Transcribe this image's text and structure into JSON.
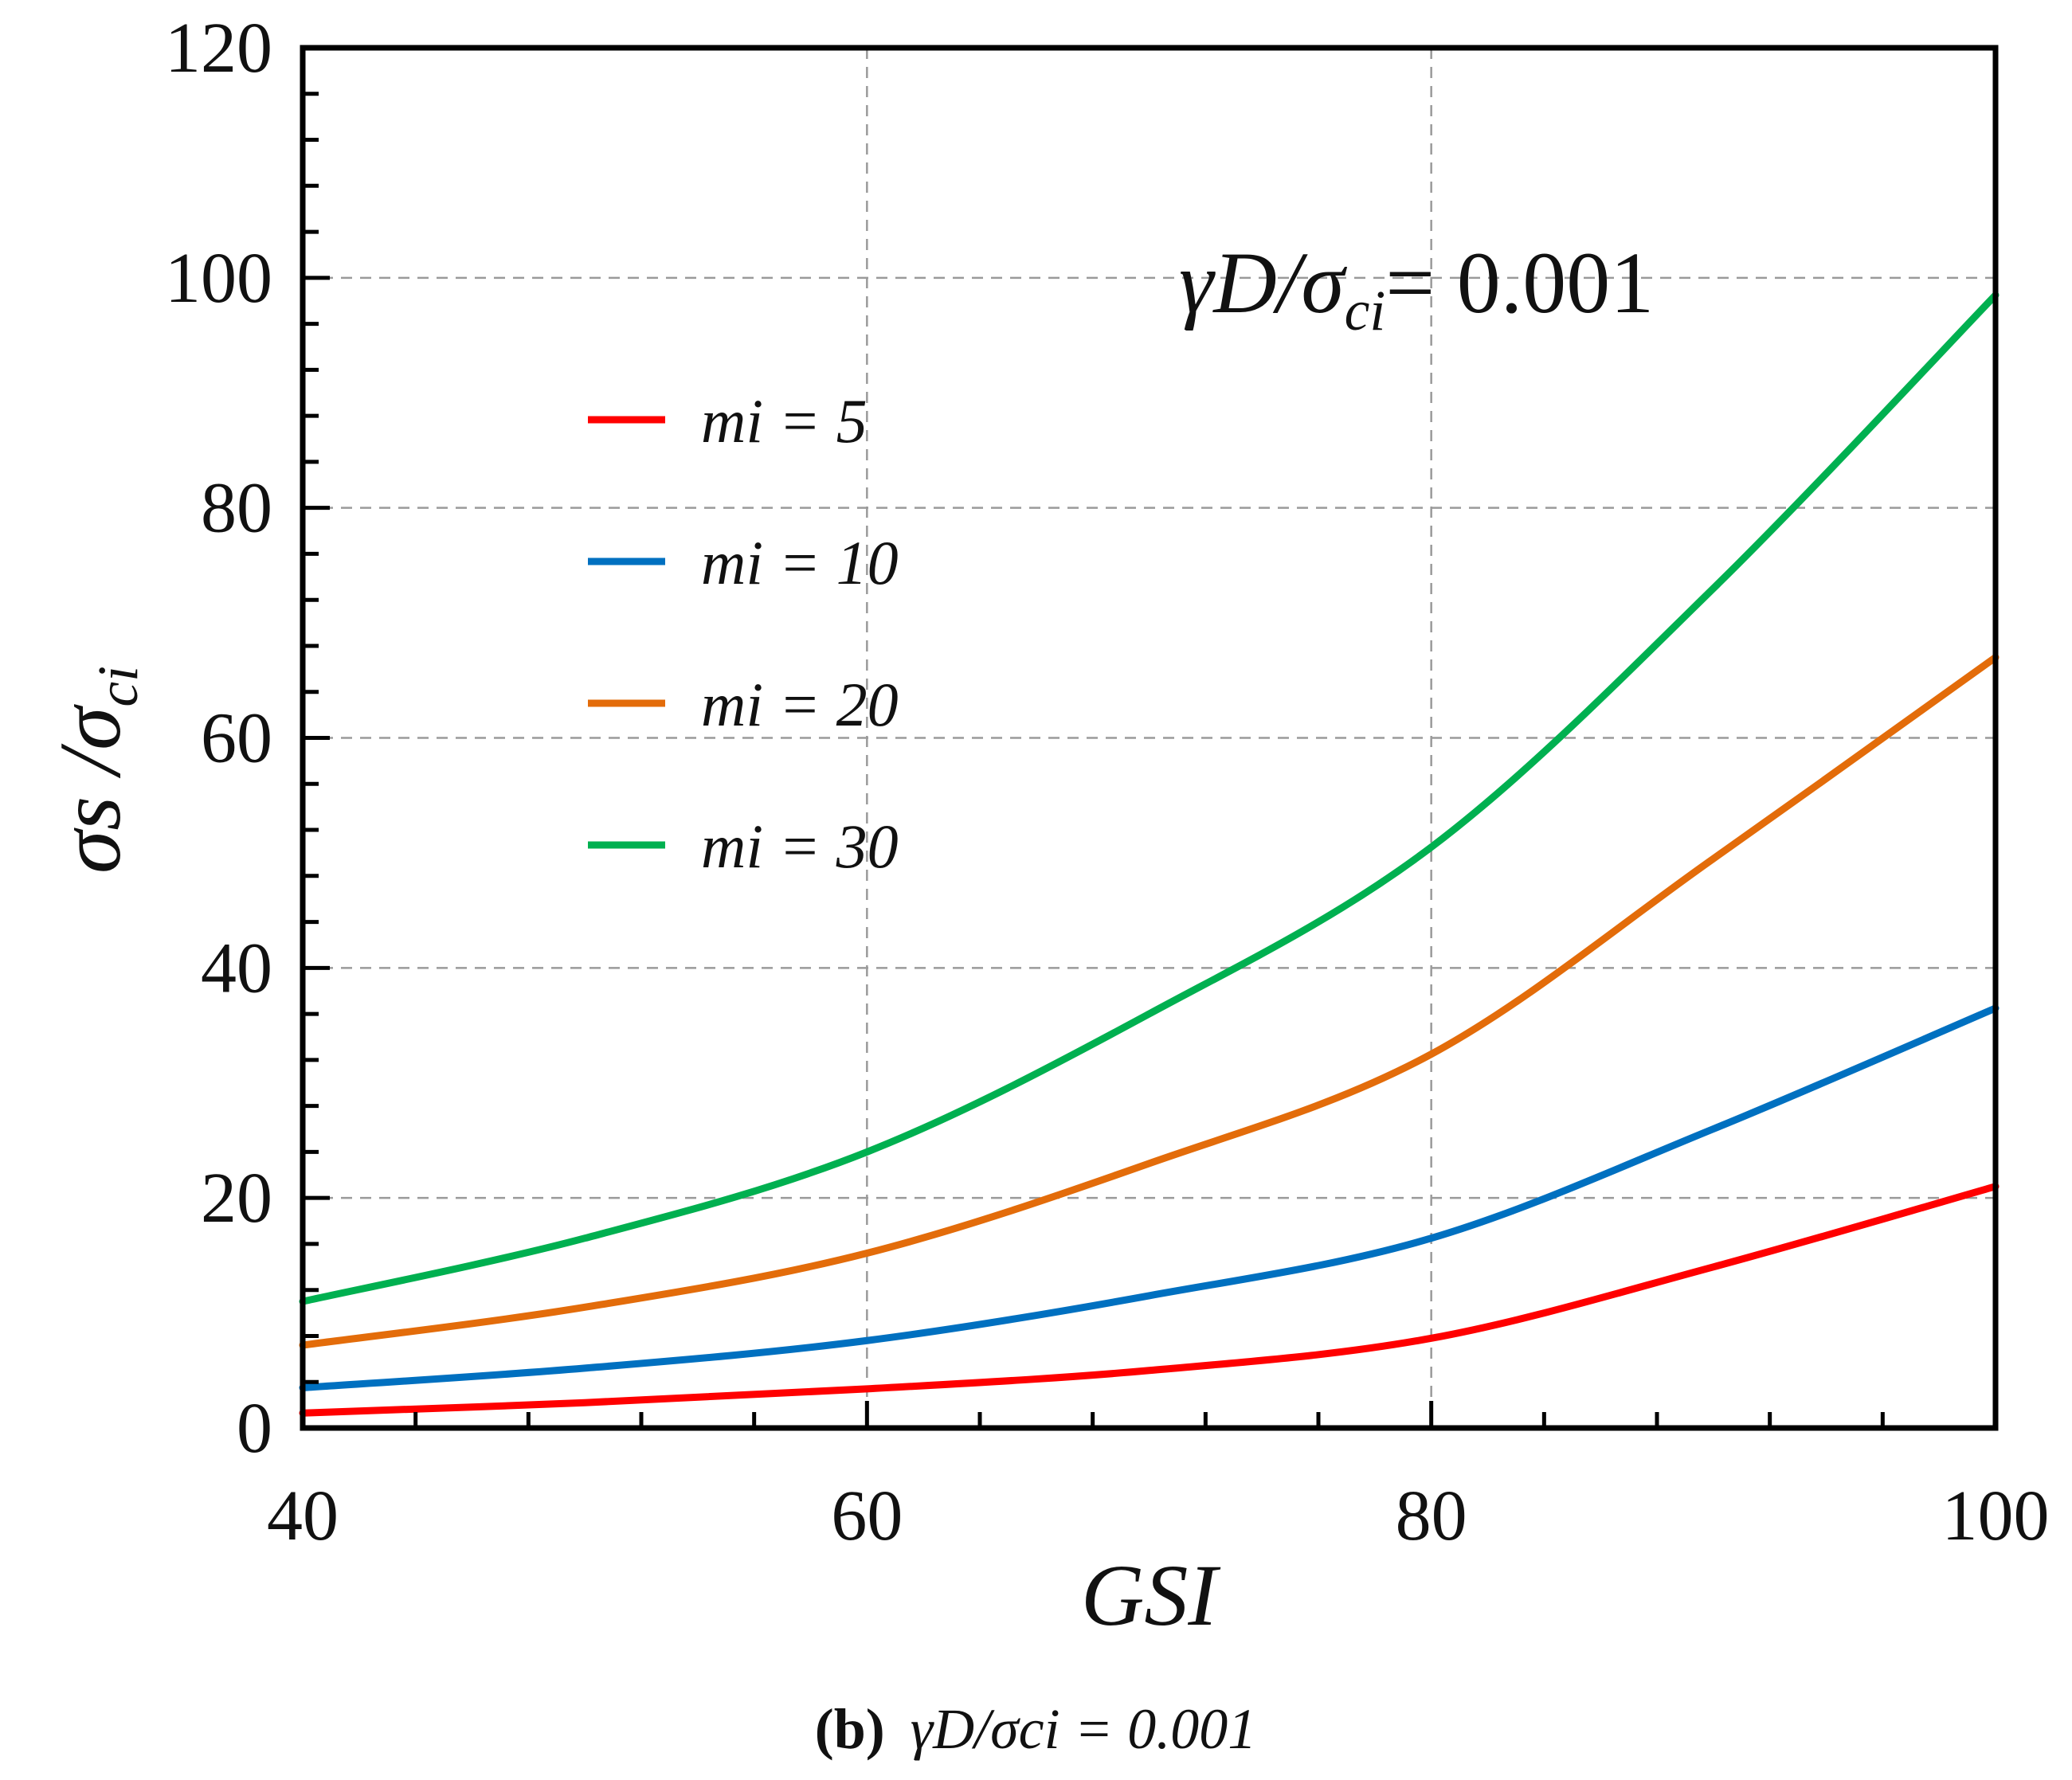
{
  "chart_data": {
    "type": "line",
    "annotation": "γD/σci= 0.001",
    "xlabel": "GSI",
    "ylabel": "σs /σci",
    "xlim": [
      40,
      100
    ],
    "ylim": [
      0,
      120
    ],
    "x_ticks": [
      40,
      60,
      80,
      100
    ],
    "y_ticks": [
      0,
      20,
      40,
      60,
      80,
      100,
      120
    ],
    "grid": true,
    "legend_position": "upper-left",
    "x": [
      40,
      50,
      60,
      70,
      80,
      90,
      100
    ],
    "series": [
      {
        "name": "mi = 5",
        "color": "#ff0000",
        "values": [
          1.3,
          2.2,
          3.4,
          5.0,
          7.8,
          14.0,
          21.0
        ]
      },
      {
        "name": "mi = 10",
        "color": "#0070c0",
        "values": [
          3.5,
          5.2,
          7.6,
          11.5,
          16.5,
          26.0,
          36.5
        ]
      },
      {
        "name": "mi = 20",
        "color": "#e36c0a",
        "values": [
          7.2,
          10.5,
          15.2,
          23.0,
          32.5,
          49.5,
          67.0
        ]
      },
      {
        "name": "mi = 30",
        "color": "#00b050",
        "values": [
          11.0,
          16.5,
          24.0,
          36.0,
          50.5,
          73.0,
          98.5
        ]
      }
    ],
    "caption": {
      "label": "(b)",
      "text": "γD/σci = 0.001"
    }
  }
}
